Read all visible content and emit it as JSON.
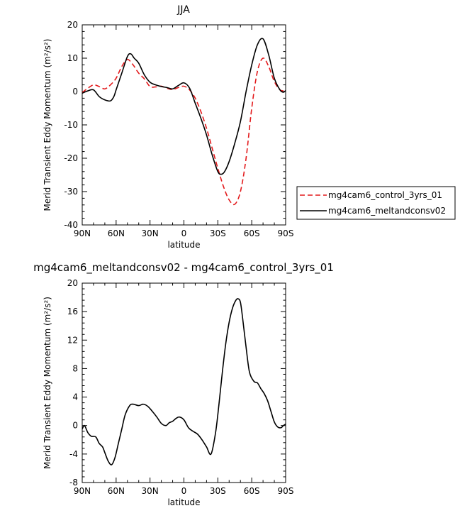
{
  "chart_data": [
    {
      "type": "line",
      "title": "JJA",
      "xlabel": "latitude",
      "ylabel": "Merid Transient Eddy Momentum  (m²/s²)",
      "x_tick_labels": [
        "90N",
        "60N",
        "30N",
        "0",
        "30S",
        "60S",
        "90S"
      ],
      "x_tick_values": [
        90,
        60,
        30,
        0,
        -30,
        -60,
        -90
      ],
      "xlim": [
        90,
        -90
      ],
      "ylim": [
        -40,
        20
      ],
      "y_ticks": [
        -40,
        -30,
        -20,
        -10,
        0,
        10,
        20
      ],
      "legend_position": "right",
      "series": [
        {
          "name": "mg4cam6_control_3yrs_01",
          "color": "#e31a1c",
          "dash": "dashed",
          "x": [
            90,
            85,
            80,
            75,
            70,
            65,
            60,
            55,
            50,
            45,
            40,
            35,
            30,
            25,
            20,
            15,
            10,
            5,
            0,
            -5,
            -10,
            -15,
            -20,
            -25,
            -30,
            -35,
            -40,
            -45,
            -50,
            -55,
            -60,
            -65,
            -70,
            -75,
            -80,
            -85,
            -90
          ],
          "y": [
            -0.3,
            1.0,
            2.0,
            1.5,
            0.8,
            2.0,
            4.0,
            7.5,
            9.6,
            8.0,
            5.5,
            3.8,
            1.5,
            1.4,
            1.6,
            1.0,
            0.6,
            1.2,
            1.6,
            0.5,
            -2.0,
            -6.0,
            -11.0,
            -17.0,
            -23.0,
            -28.5,
            -32.5,
            -33.8,
            -30.0,
            -20.0,
            -5.0,
            6.0,
            10.0,
            7.5,
            3.0,
            0.5,
            0.2
          ]
        },
        {
          "name": "mg4cam6_meltandconsv02",
          "color": "#000000",
          "dash": "solid",
          "x": [
            90,
            85,
            80,
            75,
            70,
            65,
            62,
            60,
            55,
            50,
            47,
            44,
            40,
            35,
            30,
            25,
            20,
            15,
            10,
            5,
            0,
            -5,
            -10,
            -15,
            -20,
            -25,
            -30,
            -33,
            -36,
            -40,
            -45,
            -50,
            -55,
            -60,
            -65,
            -70,
            -75,
            -80,
            -85,
            -88,
            -90
          ],
          "y": [
            -0.5,
            0.2,
            0.5,
            -1.5,
            -2.5,
            -2.8,
            -1.5,
            0.5,
            5.5,
            10.5,
            11.3,
            10.0,
            8.5,
            5.0,
            2.8,
            2.0,
            1.5,
            1.2,
            0.8,
            1.8,
            2.6,
            1.0,
            -3.5,
            -8.0,
            -13.0,
            -19.0,
            -24.0,
            -24.8,
            -24.0,
            -21.0,
            -15.5,
            -9.0,
            0.0,
            8.0,
            14.0,
            15.8,
            11.0,
            4.0,
            0.5,
            -0.2,
            0.3
          ]
        }
      ]
    },
    {
      "type": "line",
      "title": "mg4cam6_meltandconsv02 - mg4cam6_control_3yrs_01",
      "xlabel": "latitude",
      "ylabel": "Merid Transient Eddy Momentum  (m²/s²)",
      "x_tick_labels": [
        "90N",
        "60N",
        "30N",
        "0",
        "30S",
        "60S",
        "90S"
      ],
      "x_tick_values": [
        90,
        60,
        30,
        0,
        -30,
        -60,
        -90
      ],
      "xlim": [
        90,
        -90
      ],
      "ylim": [
        -8,
        20
      ],
      "y_ticks": [
        -8,
        -4,
        0,
        4,
        8,
        12,
        16,
        20
      ],
      "series": [
        {
          "name": "",
          "color": "#000000",
          "dash": "solid",
          "x": [
            90,
            88,
            85,
            82,
            78,
            75,
            72,
            70,
            67,
            64,
            61,
            58,
            55,
            52,
            48,
            45,
            40,
            36,
            32,
            28,
            24,
            20,
            16,
            13,
            10,
            7,
            4,
            0,
            -4,
            -8,
            -12,
            -16,
            -20,
            -24,
            -28,
            -31,
            -34,
            -37,
            -40,
            -43,
            -46,
            -48,
            -50,
            -52,
            -55,
            -58,
            -62,
            -65,
            -68,
            -71,
            -74,
            -77,
            -80,
            -83,
            -86,
            -88,
            -90
          ],
          "y": [
            -0.5,
            0.0,
            -1.0,
            -1.5,
            -1.6,
            -2.5,
            -3.0,
            -3.8,
            -5.0,
            -5.5,
            -4.5,
            -2.5,
            -0.5,
            1.5,
            2.8,
            3.0,
            2.8,
            3.0,
            2.7,
            2.0,
            1.2,
            0.3,
            0.0,
            0.4,
            0.6,
            1.0,
            1.2,
            0.8,
            -0.3,
            -0.8,
            -1.2,
            -2.0,
            -3.0,
            -4.0,
            -1.0,
            3.0,
            7.5,
            11.5,
            14.5,
            16.5,
            17.6,
            17.8,
            17.3,
            15.0,
            11.0,
            7.5,
            6.2,
            6.0,
            5.2,
            4.5,
            3.5,
            2.0,
            0.5,
            -0.2,
            -0.3,
            0.0,
            0.2
          ]
        }
      ]
    }
  ]
}
